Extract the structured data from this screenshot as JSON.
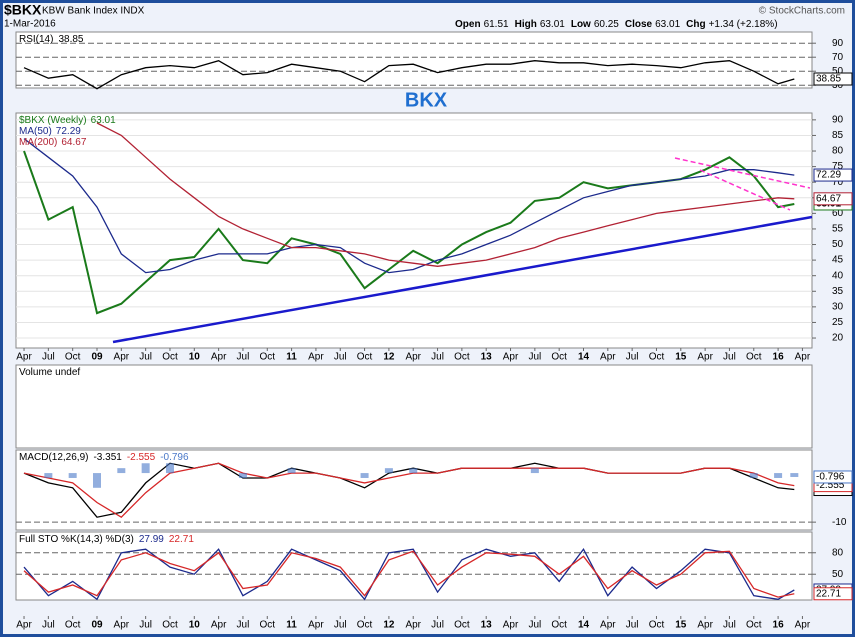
{
  "header": {
    "symbol": "$BKX",
    "name": "KBW Bank Index INDX",
    "date": "1-Mar-2016",
    "source": "© StockCharts.com",
    "quote": [
      {
        "label": "Open",
        "value": 61.51
      },
      {
        "label": "High",
        "value": 63.01
      },
      {
        "label": "Low",
        "value": 60.25
      },
      {
        "label": "Close",
        "value": 63.01
      },
      {
        "label": "Chg",
        "value": "+1.34 (+2.18%)"
      }
    ]
  },
  "annotation": "BKX",
  "chart_data": [
    {
      "type": "line",
      "title": "RSI(14)",
      "ylim": [
        26,
        106
      ],
      "yticks": [
        90,
        70,
        50,
        30
      ],
      "x": [
        "2008-04",
        "2008-07",
        "2008-10",
        "2009-01",
        "2009-04",
        "2009-07",
        "2009-10",
        "2010-01",
        "2010-04",
        "2010-07",
        "2010-10",
        "2011-01",
        "2011-04",
        "2011-07",
        "2011-10",
        "2012-01",
        "2012-04",
        "2012-07",
        "2012-10",
        "2013-01",
        "2013-04",
        "2013-07",
        "2013-10",
        "2014-01",
        "2014-04",
        "2014-07",
        "2014-10",
        "2015-01",
        "2015-04",
        "2015-07",
        "2015-10",
        "2016-01",
        "2016-03"
      ],
      "series": [
        {
          "name": "RSI",
          "color": "#000000",
          "values": [
            55,
            40,
            45,
            25,
            45,
            55,
            58,
            55,
            65,
            45,
            48,
            60,
            55,
            50,
            35,
            58,
            60,
            48,
            55,
            60,
            60,
            65,
            62,
            62,
            58,
            60,
            58,
            55,
            62,
            65,
            50,
            32,
            38.85
          ]
        }
      ]
    },
    {
      "type": "line",
      "title": "$BKX (Weekly)",
      "ylim": [
        16.8,
        92.2
      ],
      "yticks": [
        20,
        25,
        30,
        35,
        40,
        45,
        50,
        55,
        60,
        65,
        70,
        75,
        80,
        85,
        90
      ],
      "x": [
        "2008-04",
        "2008-07",
        "2008-10",
        "2009-01",
        "2009-04",
        "2009-07",
        "2009-10",
        "2010-01",
        "2010-04",
        "2010-07",
        "2010-10",
        "2011-01",
        "2011-04",
        "2011-07",
        "2011-10",
        "2012-01",
        "2012-04",
        "2012-07",
        "2012-10",
        "2013-01",
        "2013-04",
        "2013-07",
        "2013-10",
        "2014-01",
        "2014-04",
        "2014-07",
        "2014-10",
        "2015-01",
        "2015-04",
        "2015-07",
        "2015-10",
        "2016-01",
        "2016-03"
      ],
      "xticks": [
        {
          "value": "2008-04",
          "label": "Apr"
        },
        {
          "value": "2008-07",
          "label": "Jul"
        },
        {
          "value": "2008-10",
          "label": "Oct"
        },
        {
          "value": "2009-01",
          "label": "09"
        },
        {
          "value": "2009-04",
          "label": "Apr"
        },
        {
          "value": "2009-07",
          "label": "Jul"
        },
        {
          "value": "2009-10",
          "label": "Oct"
        },
        {
          "value": "2010-01",
          "label": "10"
        },
        {
          "value": "2010-04",
          "label": "Apr"
        },
        {
          "value": "2010-07",
          "label": "Jul"
        },
        {
          "value": "2010-10",
          "label": "Oct"
        },
        {
          "value": "2011-01",
          "label": "11"
        },
        {
          "value": "2011-04",
          "label": "Apr"
        },
        {
          "value": "2011-07",
          "label": "Jul"
        },
        {
          "value": "2011-10",
          "label": "Oct"
        },
        {
          "value": "2012-01",
          "label": "12"
        },
        {
          "value": "2012-04",
          "label": "Apr"
        },
        {
          "value": "2012-07",
          "label": "Jul"
        },
        {
          "value": "2012-10",
          "label": "Oct"
        },
        {
          "value": "2013-01",
          "label": "13"
        },
        {
          "value": "2013-04",
          "label": "Apr"
        },
        {
          "value": "2013-07",
          "label": "Jul"
        },
        {
          "value": "2013-10",
          "label": "Oct"
        },
        {
          "value": "2014-01",
          "label": "14"
        },
        {
          "value": "2014-04",
          "label": "Apr"
        },
        {
          "value": "2014-07",
          "label": "Jul"
        },
        {
          "value": "2014-10",
          "label": "Oct"
        },
        {
          "value": "2015-01",
          "label": "15"
        },
        {
          "value": "2015-04",
          "label": "Apr"
        },
        {
          "value": "2015-07",
          "label": "Jul"
        },
        {
          "value": "2015-10",
          "label": "Oct"
        },
        {
          "value": "2016-01",
          "label": "16"
        },
        {
          "value": "2016-04",
          "label": "Apr"
        }
      ],
      "series": [
        {
          "name": "$BKX (Weekly)",
          "color": "#1a7a1a",
          "values": [
            80,
            58,
            62,
            28,
            31,
            38,
            45,
            46,
            55,
            45,
            44,
            52,
            50,
            47,
            36,
            42,
            48,
            44,
            50,
            54,
            57,
            64,
            65,
            70,
            68,
            69,
            70,
            71,
            74,
            78,
            72,
            62,
            63.01
          ]
        },
        {
          "name": "MA(50)",
          "color": "#1c2a8c",
          "values": [
            84,
            78,
            72,
            62,
            47,
            41,
            42,
            45,
            47,
            47,
            47,
            49,
            50,
            49,
            44,
            41,
            42,
            45,
            47,
            50,
            53,
            57,
            61,
            65,
            67,
            69,
            70,
            71,
            72,
            74,
            74,
            73,
            72.29
          ]
        },
        {
          "name": "MA(200)",
          "color": "#b22234",
          "values": [
            null,
            null,
            null,
            89,
            85,
            78,
            71,
            65,
            59,
            55,
            52,
            49,
            49,
            48,
            47,
            45,
            44,
            43,
            44,
            45,
            47,
            49,
            52,
            54,
            56,
            58,
            60,
            61,
            62,
            63,
            64,
            65,
            64.67
          ]
        }
      ]
    },
    {
      "type": "bar",
      "title": "Volume undef"
    },
    {
      "type": "line",
      "title": "MACD(12,26,9)",
      "ylim": [
        -11.6,
        4.7
      ],
      "yticks": [
        -10
      ],
      "x": [
        "2008-04",
        "2008-07",
        "2008-10",
        "2009-01",
        "2009-04",
        "2009-07",
        "2009-10",
        "2010-01",
        "2010-04",
        "2010-07",
        "2010-10",
        "2011-01",
        "2011-04",
        "2011-07",
        "2011-10",
        "2012-01",
        "2012-04",
        "2012-07",
        "2012-10",
        "2013-01",
        "2013-04",
        "2013-07",
        "2013-10",
        "2014-01",
        "2014-04",
        "2014-07",
        "2014-10",
        "2015-01",
        "2015-04",
        "2015-07",
        "2015-10",
        "2016-01",
        "2016-03"
      ],
      "series": [
        {
          "name": "MACD",
          "color": "#000000",
          "values": [
            0,
            -2,
            -3,
            -9,
            -8,
            -2,
            2,
            1,
            2,
            -1,
            -1,
            1,
            0,
            -1,
            -3,
            0,
            1,
            0,
            1,
            1,
            1,
            2,
            1,
            1,
            0,
            0,
            0,
            0,
            1,
            1,
            -1,
            -3,
            -3.351
          ]
        },
        {
          "name": "Signal",
          "color": "#d62728",
          "values": [
            0,
            -1,
            -2,
            -6,
            -9,
            -4,
            0,
            1,
            2,
            0,
            -1,
            0,
            0,
            -1,
            -2,
            -1,
            0,
            0,
            1,
            1,
            1,
            1,
            1,
            1,
            0,
            0,
            0,
            0,
            1,
            1,
            0,
            -2,
            -2.555
          ]
        },
        {
          "name": "Histogram",
          "color": "#4a78c8",
          "style": "bar",
          "values": [
            0,
            -1,
            -1,
            -3,
            1,
            2,
            2,
            0,
            0,
            -1,
            0,
            1,
            0,
            0,
            -1,
            1,
            1,
            0,
            0,
            0,
            0,
            1,
            0,
            0,
            0,
            0,
            0,
            0,
            0,
            0,
            -1,
            -1,
            -0.796
          ]
        }
      ]
    },
    {
      "type": "line",
      "title": "Full STO %K(14,3) %D(3)",
      "ylim": [
        14,
        109
      ],
      "yticks": [
        80,
        50
      ],
      "x": [
        "2008-04",
        "2008-07",
        "2008-10",
        "2009-01",
        "2009-04",
        "2009-07",
        "2009-10",
        "2010-01",
        "2010-04",
        "2010-07",
        "2010-10",
        "2011-01",
        "2011-04",
        "2011-07",
        "2011-10",
        "2012-01",
        "2012-04",
        "2012-07",
        "2012-10",
        "2013-01",
        "2013-04",
        "2013-07",
        "2013-10",
        "2014-01",
        "2014-04",
        "2014-07",
        "2014-10",
        "2015-01",
        "2015-04",
        "2015-07",
        "2015-10",
        "2016-01",
        "2016-03"
      ],
      "series": [
        {
          "name": "%K",
          "color": "#1c2a8c",
          "values": [
            60,
            20,
            40,
            15,
            80,
            85,
            60,
            50,
            85,
            20,
            40,
            85,
            70,
            55,
            15,
            80,
            85,
            25,
            70,
            85,
            75,
            80,
            40,
            85,
            20,
            60,
            30,
            55,
            85,
            80,
            20,
            15,
            27.99
          ]
        },
        {
          "name": "%D",
          "color": "#d62728",
          "values": [
            55,
            25,
            35,
            20,
            70,
            80,
            65,
            55,
            80,
            30,
            35,
            80,
            72,
            60,
            20,
            70,
            82,
            35,
            60,
            80,
            78,
            75,
            50,
            75,
            30,
            55,
            35,
            50,
            80,
            82,
            30,
            18,
            22.71
          ]
        }
      ]
    }
  ]
}
